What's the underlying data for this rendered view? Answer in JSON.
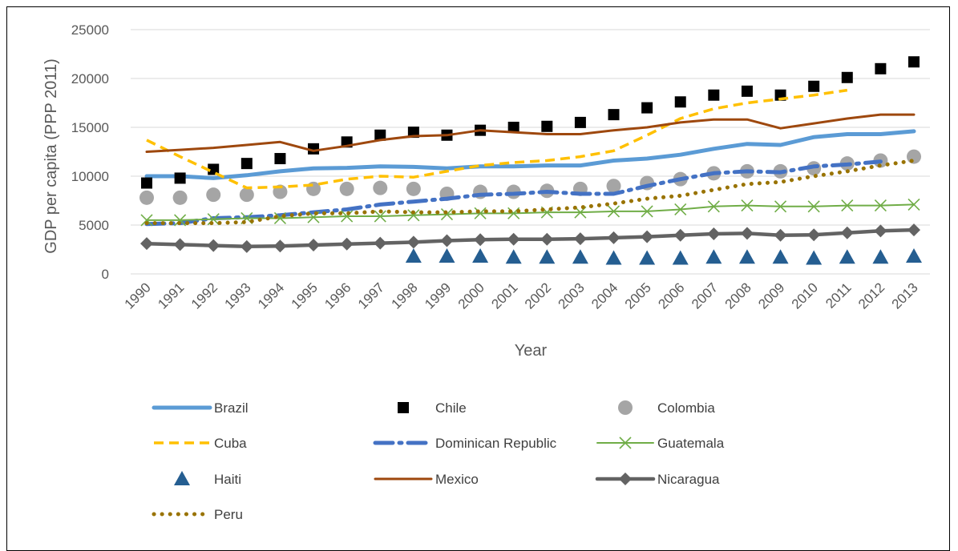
{
  "chart_data": {
    "type": "line",
    "title": "",
    "xlabel": "Year",
    "ylabel": "GDP per capita (PPP 2011)",
    "ylim": [
      0,
      25000
    ],
    "yticks": [
      0,
      5000,
      10000,
      15000,
      20000,
      25000
    ],
    "grid": "horizontal",
    "legend_position": "bottom",
    "x": [
      "1990",
      "1991",
      "1992",
      "1993",
      "1994",
      "1995",
      "1996",
      "1997",
      "1998",
      "1999",
      "2000",
      "2001",
      "2002",
      "2003",
      "2004",
      "2005",
      "2006",
      "2007",
      "2008",
      "2009",
      "2010",
      "2011",
      "2012",
      "2013"
    ],
    "series": [
      {
        "name": "Brazil",
        "color": "#5B9BD5",
        "style": "thick-line",
        "values": [
          10000,
          10000,
          9800,
          10100,
          10500,
          10800,
          10850,
          11000,
          10950,
          10800,
          11000,
          11000,
          11100,
          11100,
          11600,
          11800,
          12200,
          12800,
          13300,
          13200,
          14000,
          14300,
          14300,
          14600
        ]
      },
      {
        "name": "Chile",
        "color": "#000000",
        "style": "square-markers",
        "values": [
          9300,
          9800,
          10700,
          11300,
          11800,
          12800,
          13500,
          14200,
          14500,
          14200,
          14700,
          15000,
          15100,
          15500,
          16300,
          17000,
          17600,
          18300,
          18700,
          18300,
          19200,
          20100,
          21000,
          21700
        ]
      },
      {
        "name": "Colombia",
        "color": "#A5A5A5",
        "style": "circle-markers",
        "values": [
          7800,
          7800,
          8100,
          8100,
          8400,
          8700,
          8700,
          8800,
          8700,
          8200,
          8400,
          8400,
          8500,
          8700,
          9000,
          9300,
          9700,
          10300,
          10500,
          10500,
          10800,
          11300,
          11600,
          12000
        ]
      },
      {
        "name": "Cuba",
        "color": "#FFC000",
        "style": "dashed-line",
        "values": [
          13700,
          12000,
          10400,
          8800,
          8900,
          9100,
          9700,
          10000,
          9900,
          10500,
          11100,
          11400,
          11600,
          12000,
          12600,
          14200,
          15900,
          16900,
          17500,
          17900,
          18300,
          18800,
          null,
          null
        ]
      },
      {
        "name": "Dominican Republic",
        "color": "#4472C4",
        "style": "dash-dot-line",
        "values": [
          5100,
          5200,
          5700,
          5800,
          6000,
          6300,
          6600,
          7100,
          7400,
          7700,
          8100,
          8200,
          8400,
          8200,
          8200,
          9000,
          9700,
          10300,
          10500,
          10400,
          11000,
          11200,
          11500,
          null
        ]
      },
      {
        "name": "Guatemala",
        "color": "#70AD47",
        "style": "x-markers",
        "values": [
          5500,
          5500,
          5600,
          5700,
          5700,
          5800,
          5900,
          5900,
          6000,
          6100,
          6200,
          6200,
          6300,
          6300,
          6400,
          6400,
          6600,
          6900,
          7000,
          6900,
          6900,
          7000,
          7000,
          7100
        ]
      },
      {
        "name": "Haiti",
        "color": "#255E91",
        "style": "triangle-markers",
        "values": [
          null,
          null,
          null,
          null,
          null,
          null,
          null,
          null,
          1800,
          1800,
          1800,
          1700,
          1700,
          1700,
          1600,
          1600,
          1600,
          1700,
          1700,
          1700,
          1600,
          1700,
          1700,
          1800
        ]
      },
      {
        "name": "Mexico",
        "color": "#9E480E",
        "style": "line",
        "values": [
          12500,
          12700,
          12900,
          13200,
          13500,
          12600,
          13100,
          13700,
          14100,
          14200,
          14700,
          14500,
          14300,
          14300,
          14700,
          15000,
          15500,
          15800,
          15800,
          14900,
          15400,
          15900,
          16300,
          16300
        ]
      },
      {
        "name": "Nicaragua",
        "color": "#636363",
        "style": "line-diamond",
        "values": [
          3100,
          3000,
          2900,
          2800,
          2850,
          2950,
          3050,
          3150,
          3250,
          3400,
          3500,
          3550,
          3550,
          3600,
          3700,
          3800,
          3950,
          4100,
          4150,
          3950,
          4000,
          4200,
          4400,
          4500
        ]
      },
      {
        "name": "Peru",
        "color": "#997300",
        "style": "dotted-line",
        "values": [
          5200,
          5200,
          5200,
          5300,
          5900,
          6200,
          6200,
          6400,
          6300,
          6300,
          6400,
          6400,
          6600,
          6800,
          7200,
          7700,
          8000,
          8600,
          9200,
          9400,
          10000,
          10500,
          11100,
          11600
        ]
      }
    ]
  }
}
